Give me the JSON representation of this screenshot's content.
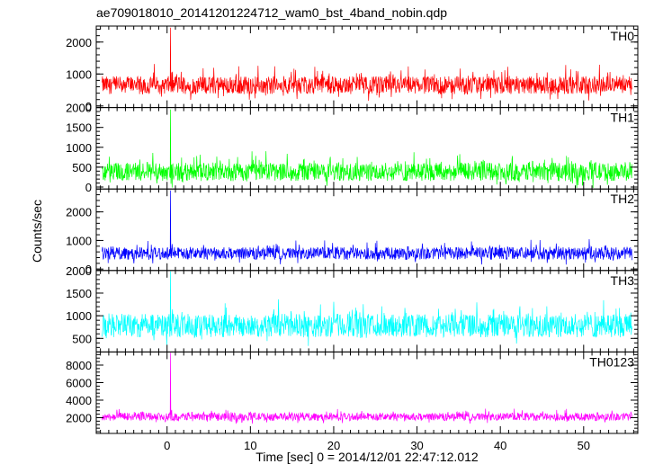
{
  "chart_data": {
    "type": "line",
    "title": "ae709018010_20141201224712_wam0_bst_4band_nobin.qdp",
    "xlabel": "Time [sec] 0 = 2014/12/01 22:47:12.012",
    "ylabel": "Counts/sec",
    "xlim": [
      -8.5,
      56.5
    ],
    "x_ticks": [
      0,
      10,
      20,
      30,
      40,
      50
    ],
    "x_range_data": [
      -7.8,
      55.8
    ],
    "grid": false,
    "panels": [
      {
        "name": "TH0",
        "color": "#ff0000",
        "ylim": [
          -50,
          2500
        ],
        "yticks": [
          0,
          1000,
          2000
        ],
        "baseline": 650,
        "noise": 280,
        "spike": {
          "x": 0.4,
          "y": 2450
        }
      },
      {
        "name": "TH1",
        "color": "#00ff00",
        "ylim": [
          -50,
          2000
        ],
        "yticks": [
          0,
          500,
          1000,
          1500,
          2000
        ],
        "baseline": 380,
        "noise": 230,
        "spike": {
          "x": 0.4,
          "y": 1950
        }
      },
      {
        "name": "TH2",
        "color": "#0000ff",
        "ylim": [
          -50,
          2800
        ],
        "yticks": [
          0,
          1000,
          2000
        ],
        "baseline": 550,
        "noise": 220,
        "spike": {
          "x": 0.4,
          "y": 2750
        }
      },
      {
        "name": "TH3",
        "color": "#00ffff",
        "ylim": [
          200,
          2000
        ],
        "yticks": [
          500,
          1000,
          1500,
          2000
        ],
        "baseline": 780,
        "noise": 260,
        "spike": {
          "x": 0.4,
          "y": 1980
        }
      },
      {
        "name": "TH0123",
        "color": "#ff00ff",
        "ylim": [
          200,
          9500
        ],
        "yticks": [
          2000,
          4000,
          6000,
          8000
        ],
        "baseline": 2100,
        "noise": 450,
        "spike": {
          "x": 0.4,
          "y": 9400
        }
      }
    ]
  }
}
